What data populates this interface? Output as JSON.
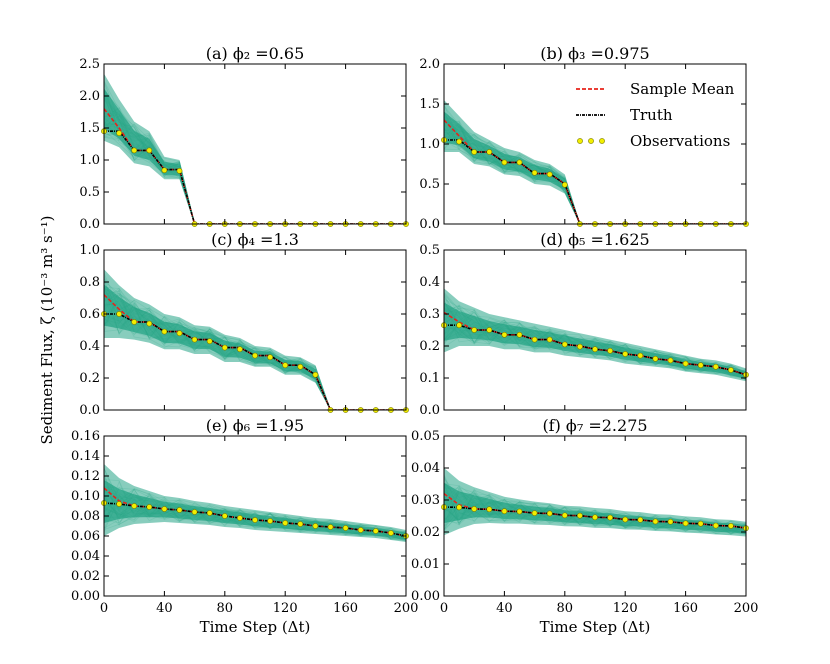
{
  "figure": {
    "ylabel": "Sediment Flux, ζ (10⁻³ m³ s⁻¹)",
    "xlabel": "Time Step (Δt)"
  },
  "legend": {
    "entries": [
      {
        "label": "Sample Mean",
        "color": "#e8231a",
        "style": "dashed"
      },
      {
        "label": "Truth",
        "color": "#000000",
        "style": "dash-dot"
      },
      {
        "label": "Observations",
        "color": "#f2ee00",
        "style": "markers"
      }
    ]
  },
  "colors": {
    "ensemble": "#26a487",
    "mean": "#e8231a",
    "truth": "#000000",
    "observation_fill": "#f2ee00",
    "observation_edge": "#7a7a00"
  },
  "chart_data": [
    {
      "type": "line",
      "panel": "a",
      "title": "(a) ϕ₂ =0.65",
      "x": [
        0,
        10,
        20,
        30,
        40,
        50,
        60,
        70,
        80,
        90,
        100,
        110,
        120,
        130,
        140,
        150,
        160,
        170,
        180,
        190,
        200
      ],
      "truth": [
        1.45,
        1.45,
        1.15,
        1.15,
        0.85,
        0.85,
        0,
        0,
        0,
        0,
        0,
        0,
        0,
        0,
        0,
        0,
        0,
        0,
        0,
        0,
        0
      ],
      "mean": [
        1.8,
        1.5,
        1.15,
        1.15,
        0.85,
        0.85,
        0,
        0,
        0,
        0,
        0,
        0,
        0,
        0,
        0,
        0,
        0,
        0,
        0,
        0,
        0
      ],
      "ensemble_upper": [
        2.35,
        1.95,
        1.6,
        1.45,
        1.05,
        1.0,
        0,
        0,
        0,
        0,
        0,
        0,
        0,
        0,
        0,
        0,
        0,
        0,
        0,
        0,
        0
      ],
      "ensemble_lower": [
        1.3,
        1.2,
        0.95,
        0.9,
        0.7,
        0.7,
        0,
        0,
        0,
        0,
        0,
        0,
        0,
        0,
        0,
        0,
        0,
        0,
        0,
        0,
        0
      ],
      "obs_x": [
        0,
        10,
        20,
        30,
        40,
        50,
        60,
        70,
        80,
        90,
        100,
        110,
        120,
        130,
        140,
        150,
        160,
        170,
        180,
        190,
        200
      ],
      "obs_y": [
        1.45,
        1.42,
        1.15,
        1.15,
        0.84,
        0.83,
        0,
        0,
        0,
        0,
        0,
        0,
        0,
        0,
        0,
        0,
        0,
        0,
        0,
        0,
        0
      ],
      "ylim": [
        0,
        2.5
      ],
      "yticks": [
        0.0,
        0.5,
        1.0,
        1.5,
        2.0,
        2.5
      ],
      "ytick_labels": [
        "0.0",
        "0.5",
        "1.0",
        "1.5",
        "2.0",
        "2.5"
      ],
      "xlim": [
        0,
        200
      ],
      "xticks": [
        0,
        40,
        80,
        120,
        160,
        200
      ],
      "xtick_labels": [
        "0",
        "40",
        "80",
        "120",
        "160",
        "200"
      ],
      "show_xtick_labels": false,
      "show_xlabel": false,
      "show_legend": false
    },
    {
      "type": "line",
      "panel": "b",
      "title": "(b) ϕ₃ =0.975",
      "x": [
        0,
        10,
        20,
        30,
        40,
        50,
        60,
        70,
        80,
        90,
        100,
        110,
        120,
        130,
        140,
        150,
        160,
        170,
        180,
        190,
        200
      ],
      "truth": [
        1.05,
        1.05,
        0.9,
        0.9,
        0.77,
        0.77,
        0.63,
        0.63,
        0.5,
        0,
        0,
        0,
        0,
        0,
        0,
        0,
        0,
        0,
        0,
        0,
        0
      ],
      "mean": [
        1.3,
        1.1,
        0.9,
        0.9,
        0.77,
        0.77,
        0.63,
        0.63,
        0.5,
        0,
        0,
        0,
        0,
        0,
        0,
        0,
        0,
        0,
        0,
        0,
        0
      ],
      "ensemble_upper": [
        1.55,
        1.35,
        1.15,
        1.05,
        0.95,
        0.9,
        0.8,
        0.75,
        0.62,
        0,
        0,
        0,
        0,
        0,
        0,
        0,
        0,
        0,
        0,
        0,
        0
      ],
      "ensemble_lower": [
        0.9,
        0.9,
        0.75,
        0.72,
        0.62,
        0.6,
        0.5,
        0.48,
        0.38,
        0,
        0,
        0,
        0,
        0,
        0,
        0,
        0,
        0,
        0,
        0,
        0
      ],
      "obs_x": [
        0,
        10,
        20,
        30,
        40,
        50,
        60,
        70,
        80,
        90,
        100,
        110,
        120,
        130,
        140,
        150,
        160,
        170,
        180,
        190,
        200
      ],
      "obs_y": [
        1.05,
        1.03,
        0.9,
        0.9,
        0.77,
        0.77,
        0.64,
        0.62,
        0.49,
        0,
        0,
        0,
        0,
        0,
        0,
        0,
        0,
        0,
        0,
        0,
        0
      ],
      "ylim": [
        0,
        2.0
      ],
      "yticks": [
        0.0,
        0.5,
        1.0,
        1.5,
        2.0
      ],
      "ytick_labels": [
        "0.0",
        "0.5",
        "1.0",
        "1.5",
        "2.0"
      ],
      "xlim": [
        0,
        200
      ],
      "xticks": [
        0,
        40,
        80,
        120,
        160,
        200
      ],
      "xtick_labels": [
        "0",
        "40",
        "80",
        "120",
        "160",
        "200"
      ],
      "show_xtick_labels": false,
      "show_xlabel": false,
      "show_legend": true
    },
    {
      "type": "line",
      "panel": "c",
      "title": "(c) ϕ₄ =1.3",
      "x": [
        0,
        10,
        20,
        30,
        40,
        50,
        60,
        70,
        80,
        90,
        100,
        110,
        120,
        130,
        140,
        150,
        160,
        170,
        180,
        190,
        200
      ],
      "truth": [
        0.6,
        0.6,
        0.55,
        0.55,
        0.49,
        0.49,
        0.44,
        0.44,
        0.39,
        0.39,
        0.34,
        0.34,
        0.28,
        0.28,
        0.22,
        0,
        0,
        0,
        0,
        0,
        0
      ],
      "mean": [
        0.72,
        0.63,
        0.55,
        0.55,
        0.49,
        0.49,
        0.44,
        0.44,
        0.39,
        0.39,
        0.34,
        0.34,
        0.28,
        0.28,
        0.22,
        0,
        0,
        0,
        0,
        0,
        0
      ],
      "ensemble_upper": [
        0.88,
        0.78,
        0.7,
        0.66,
        0.6,
        0.58,
        0.53,
        0.52,
        0.47,
        0.45,
        0.4,
        0.39,
        0.34,
        0.33,
        0.28,
        0,
        0,
        0,
        0,
        0,
        0
      ],
      "ensemble_lower": [
        0.45,
        0.45,
        0.44,
        0.42,
        0.38,
        0.38,
        0.35,
        0.35,
        0.3,
        0.3,
        0.27,
        0.27,
        0.22,
        0.22,
        0.17,
        0,
        0,
        0,
        0,
        0,
        0
      ],
      "obs_x": [
        0,
        10,
        20,
        30,
        40,
        50,
        60,
        70,
        80,
        90,
        100,
        110,
        120,
        130,
        140,
        150,
        160,
        170,
        180,
        190,
        200
      ],
      "obs_y": [
        0.6,
        0.6,
        0.55,
        0.54,
        0.49,
        0.48,
        0.44,
        0.43,
        0.39,
        0.38,
        0.34,
        0.33,
        0.28,
        0.27,
        0.22,
        0,
        0,
        0,
        0,
        0,
        0
      ],
      "ylim": [
        0,
        1.0
      ],
      "yticks": [
        0.0,
        0.2,
        0.4,
        0.6,
        0.8,
        1.0
      ],
      "ytick_labels": [
        "0.0",
        "0.2",
        "0.4",
        "0.6",
        "0.8",
        "1.0"
      ],
      "xlim": [
        0,
        200
      ],
      "xticks": [
        0,
        40,
        80,
        120,
        160,
        200
      ],
      "xtick_labels": [
        "0",
        "40",
        "80",
        "120",
        "160",
        "200"
      ],
      "show_xtick_labels": false,
      "show_xlabel": false,
      "show_legend": false
    },
    {
      "type": "line",
      "panel": "d",
      "title": "(d) ϕ₅ =1.625",
      "x": [
        0,
        10,
        20,
        30,
        40,
        50,
        60,
        70,
        80,
        90,
        100,
        110,
        120,
        130,
        140,
        150,
        160,
        170,
        180,
        190,
        200
      ],
      "truth": [
        0.265,
        0.265,
        0.25,
        0.25,
        0.235,
        0.235,
        0.22,
        0.22,
        0.205,
        0.2,
        0.19,
        0.185,
        0.175,
        0.17,
        0.16,
        0.155,
        0.145,
        0.14,
        0.135,
        0.125,
        0.11
      ],
      "mean": [
        0.305,
        0.275,
        0.25,
        0.25,
        0.235,
        0.235,
        0.22,
        0.22,
        0.205,
        0.2,
        0.19,
        0.185,
        0.175,
        0.17,
        0.16,
        0.155,
        0.145,
        0.14,
        0.135,
        0.125,
        0.11
      ],
      "ensemble_upper": [
        0.38,
        0.34,
        0.32,
        0.3,
        0.29,
        0.28,
        0.27,
        0.26,
        0.25,
        0.24,
        0.23,
        0.22,
        0.21,
        0.2,
        0.19,
        0.18,
        0.17,
        0.16,
        0.155,
        0.145,
        0.13
      ],
      "ensemble_lower": [
        0.18,
        0.2,
        0.2,
        0.2,
        0.19,
        0.19,
        0.18,
        0.18,
        0.17,
        0.165,
        0.16,
        0.155,
        0.145,
        0.14,
        0.135,
        0.13,
        0.12,
        0.115,
        0.11,
        0.1,
        0.09
      ],
      "obs_x": [
        0,
        10,
        20,
        30,
        40,
        50,
        60,
        70,
        80,
        90,
        100,
        110,
        120,
        130,
        140,
        150,
        160,
        170,
        180,
        190,
        200
      ],
      "obs_y": [
        0.265,
        0.265,
        0.25,
        0.25,
        0.235,
        0.235,
        0.22,
        0.22,
        0.205,
        0.198,
        0.19,
        0.185,
        0.175,
        0.17,
        0.16,
        0.155,
        0.145,
        0.14,
        0.135,
        0.125,
        0.11
      ],
      "ylim": [
        0,
        0.5
      ],
      "yticks": [
        0.0,
        0.1,
        0.2,
        0.3,
        0.4,
        0.5
      ],
      "ytick_labels": [
        "0.0",
        "0.1",
        "0.2",
        "0.3",
        "0.4",
        "0.5"
      ],
      "xlim": [
        0,
        200
      ],
      "xticks": [
        0,
        40,
        80,
        120,
        160,
        200
      ],
      "xtick_labels": [
        "0",
        "40",
        "80",
        "120",
        "160",
        "200"
      ],
      "show_xtick_labels": false,
      "show_xlabel": false,
      "show_legend": false
    },
    {
      "type": "line",
      "panel": "e",
      "title": "(e) ϕ₆ =1.95",
      "x": [
        0,
        10,
        20,
        30,
        40,
        50,
        60,
        70,
        80,
        90,
        100,
        110,
        120,
        130,
        140,
        150,
        160,
        170,
        180,
        190,
        200
      ],
      "truth": [
        0.093,
        0.092,
        0.09,
        0.089,
        0.087,
        0.086,
        0.084,
        0.083,
        0.08,
        0.078,
        0.076,
        0.075,
        0.073,
        0.072,
        0.07,
        0.069,
        0.068,
        0.066,
        0.065,
        0.063,
        0.06
      ],
      "mean": [
        0.108,
        0.095,
        0.09,
        0.089,
        0.087,
        0.086,
        0.084,
        0.083,
        0.08,
        0.078,
        0.076,
        0.075,
        0.073,
        0.072,
        0.07,
        0.069,
        0.068,
        0.066,
        0.065,
        0.063,
        0.06
      ],
      "ensemble_upper": [
        0.132,
        0.118,
        0.11,
        0.105,
        0.1,
        0.098,
        0.095,
        0.093,
        0.09,
        0.088,
        0.086,
        0.084,
        0.082,
        0.08,
        0.078,
        0.077,
        0.075,
        0.073,
        0.071,
        0.069,
        0.066
      ],
      "ensemble_lower": [
        0.06,
        0.068,
        0.072,
        0.073,
        0.074,
        0.073,
        0.072,
        0.071,
        0.069,
        0.068,
        0.066,
        0.065,
        0.064,
        0.063,
        0.062,
        0.061,
        0.06,
        0.059,
        0.058,
        0.056,
        0.054
      ],
      "obs_x": [
        0,
        10,
        20,
        30,
        40,
        50,
        60,
        70,
        80,
        90,
        100,
        110,
        120,
        130,
        140,
        150,
        160,
        170,
        180,
        190,
        200
      ],
      "obs_y": [
        0.093,
        0.092,
        0.09,
        0.089,
        0.087,
        0.086,
        0.084,
        0.083,
        0.08,
        0.078,
        0.076,
        0.075,
        0.073,
        0.072,
        0.07,
        0.069,
        0.068,
        0.066,
        0.065,
        0.063,
        0.06
      ],
      "ylim": [
        0,
        0.16
      ],
      "yticks": [
        0.0,
        0.02,
        0.04,
        0.06,
        0.08,
        0.1,
        0.12,
        0.14,
        0.16
      ],
      "ytick_labels": [
        "0.00",
        "0.02",
        "0.04",
        "0.06",
        "0.08",
        "0.10",
        "0.12",
        "0.14",
        "0.16"
      ],
      "xlim": [
        0,
        200
      ],
      "xticks": [
        0,
        40,
        80,
        120,
        160,
        200
      ],
      "xtick_labels": [
        "0",
        "40",
        "80",
        "120",
        "160",
        "200"
      ],
      "show_xtick_labels": true,
      "show_xlabel": true,
      "show_legend": false
    },
    {
      "type": "line",
      "panel": "f",
      "title": "(f) ϕ₇ =2.275",
      "x": [
        0,
        10,
        20,
        30,
        40,
        50,
        60,
        70,
        80,
        90,
        100,
        110,
        120,
        130,
        140,
        150,
        160,
        170,
        180,
        190,
        200
      ],
      "truth": [
        0.0278,
        0.0277,
        0.0272,
        0.0271,
        0.0265,
        0.0264,
        0.0259,
        0.0258,
        0.0252,
        0.0251,
        0.0246,
        0.0245,
        0.0239,
        0.0238,
        0.0233,
        0.0232,
        0.0227,
        0.0226,
        0.022,
        0.0219,
        0.0212
      ],
      "mean": [
        0.032,
        0.0285,
        0.0272,
        0.0271,
        0.0265,
        0.0264,
        0.0259,
        0.0258,
        0.0252,
        0.0251,
        0.0246,
        0.0245,
        0.0239,
        0.0238,
        0.0233,
        0.0232,
        0.0227,
        0.0226,
        0.022,
        0.0219,
        0.0212
      ],
      "ensemble_upper": [
        0.04,
        0.036,
        0.034,
        0.0325,
        0.031,
        0.0302,
        0.0295,
        0.029,
        0.0282,
        0.028,
        0.0275,
        0.0272,
        0.0265,
        0.0262,
        0.0256,
        0.0254,
        0.0249,
        0.0246,
        0.024,
        0.0238,
        0.0232
      ],
      "ensemble_lower": [
        0.019,
        0.021,
        0.0225,
        0.0228,
        0.0226,
        0.0226,
        0.0223,
        0.0222,
        0.0218,
        0.0217,
        0.0213,
        0.0212,
        0.0208,
        0.0207,
        0.0203,
        0.0202,
        0.0198,
        0.0196,
        0.0192,
        0.019,
        0.0186
      ],
      "obs_x": [
        0,
        10,
        20,
        30,
        40,
        50,
        60,
        70,
        80,
        90,
        100,
        110,
        120,
        130,
        140,
        150,
        160,
        170,
        180,
        190,
        200
      ],
      "obs_y": [
        0.0278,
        0.0277,
        0.0272,
        0.0271,
        0.0265,
        0.0264,
        0.0259,
        0.0258,
        0.0252,
        0.0251,
        0.0246,
        0.0245,
        0.0239,
        0.0238,
        0.0233,
        0.0232,
        0.0227,
        0.0226,
        0.022,
        0.0219,
        0.0212
      ],
      "ylim": [
        0,
        0.05
      ],
      "yticks": [
        0.0,
        0.01,
        0.02,
        0.03,
        0.04,
        0.05
      ],
      "ytick_labels": [
        "0.00",
        "0.01",
        "0.02",
        "0.03",
        "0.04",
        "0.05"
      ],
      "xlim": [
        0,
        200
      ],
      "xticks": [
        0,
        40,
        80,
        120,
        160,
        200
      ],
      "xtick_labels": [
        "0",
        "40",
        "80",
        "120",
        "160",
        "200"
      ],
      "show_xtick_labels": true,
      "show_xlabel": true,
      "show_legend": false
    }
  ]
}
